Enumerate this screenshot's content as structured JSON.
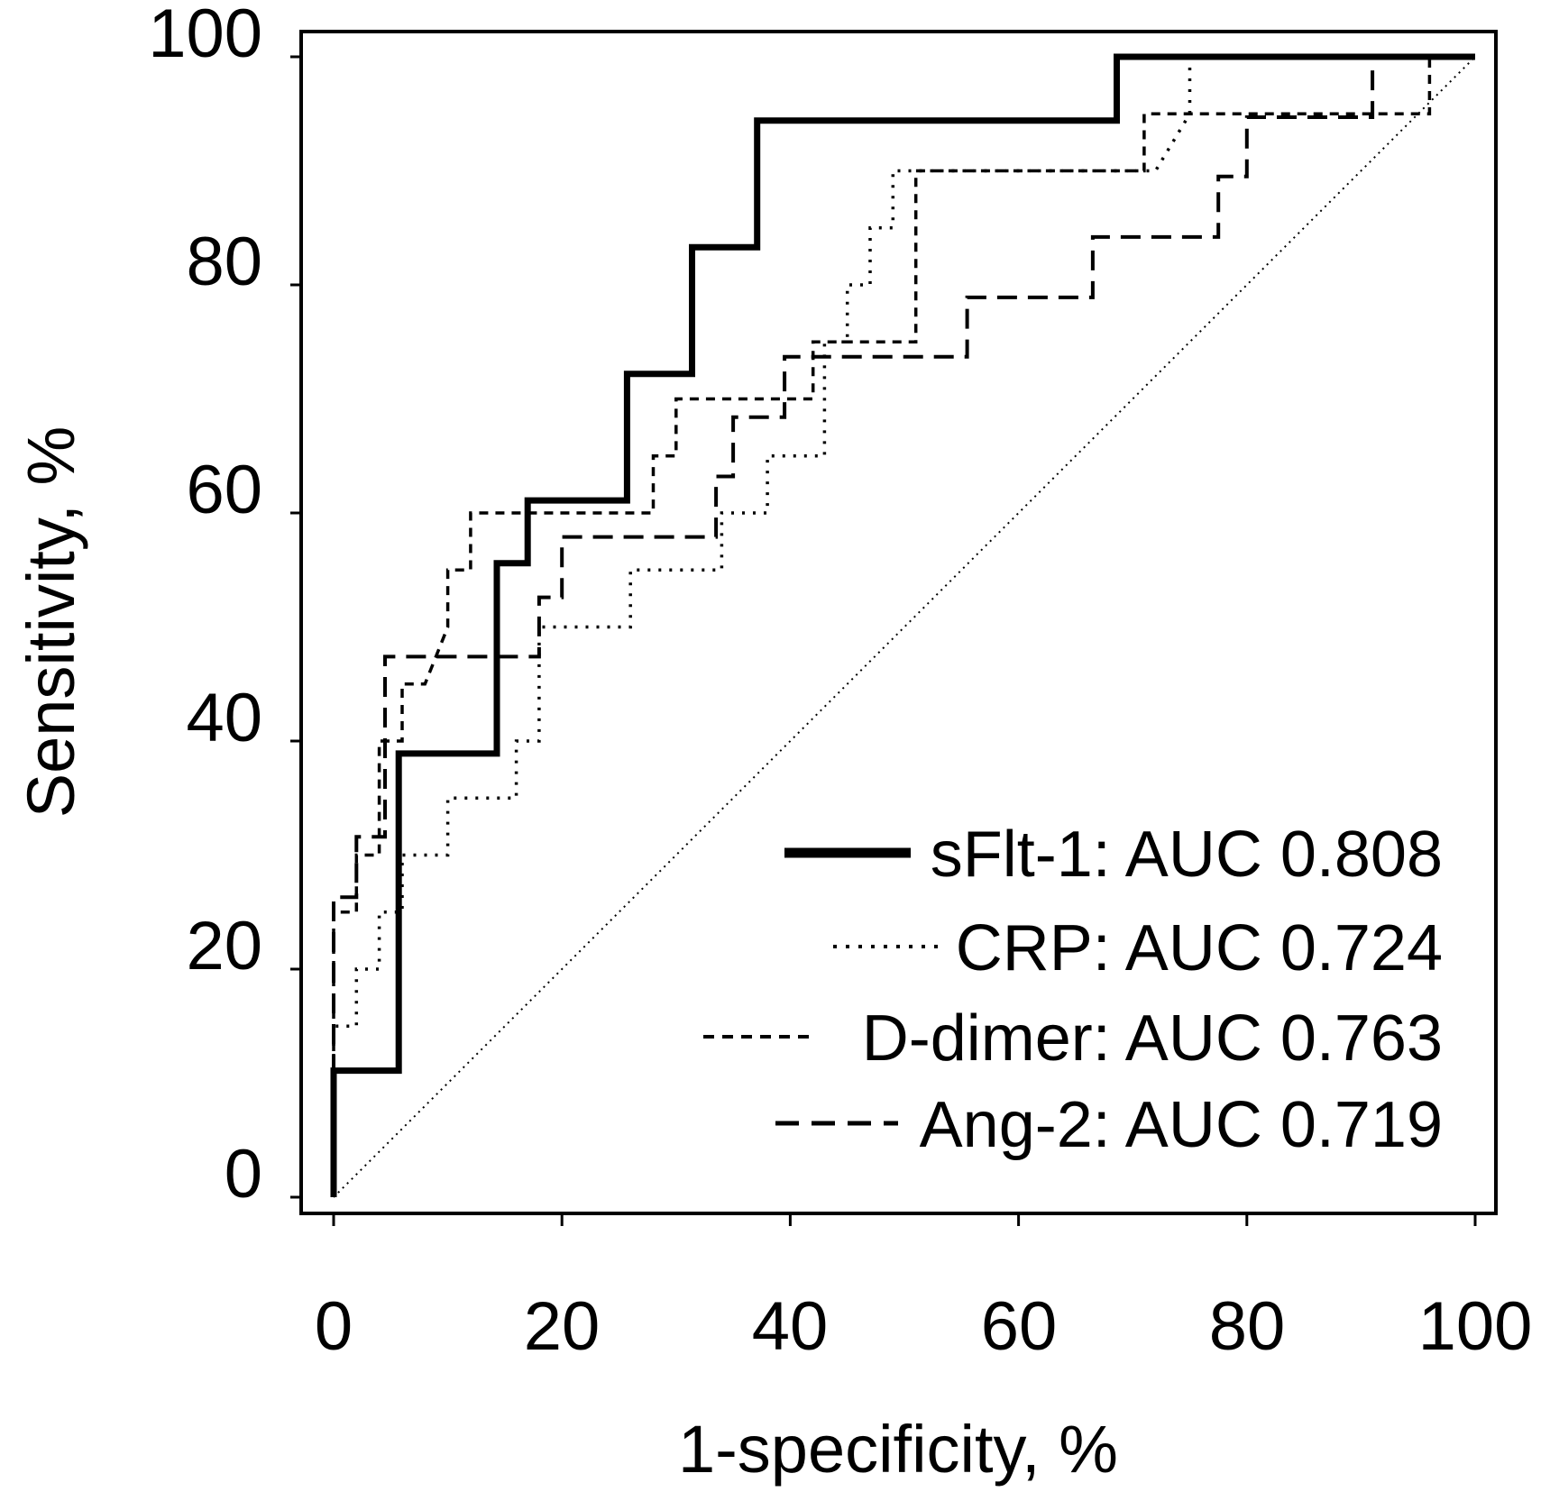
{
  "chart_data": {
    "type": "line",
    "title": "",
    "xlabel": "1-specificity, %",
    "ylabel": "Sensitivity, %",
    "xlim": [
      0,
      100
    ],
    "ylim": [
      0,
      100
    ],
    "xticks": [
      0,
      20,
      40,
      60,
      80,
      100
    ],
    "yticks": [
      0,
      20,
      40,
      60,
      80,
      100
    ],
    "grid": false,
    "legend_position": "bottom-right",
    "series": [
      {
        "name": "sFlt-1: AUC 0.808",
        "style": "solid",
        "x": [
          0,
          0,
          5.7,
          5.7,
          14.3,
          14.3,
          17,
          17,
          25.7,
          25.7,
          31.4,
          31.4,
          37.1,
          37.1,
          68.6,
          68.6,
          100
        ],
        "y": [
          0,
          11.1,
          11.1,
          38.9,
          38.9,
          55.6,
          55.6,
          61.1,
          61.1,
          72.2,
          72.2,
          83.3,
          83.3,
          94.4,
          94.4,
          100,
          100
        ]
      },
      {
        "name": "CRP: AUC 0.724",
        "style": "dotted",
        "x": [
          0,
          0,
          2,
          2,
          4,
          4,
          6,
          6,
          10,
          10,
          16,
          16,
          18,
          18,
          26,
          26,
          34,
          34,
          38,
          38,
          43,
          43,
          45,
          45,
          47,
          47,
          49,
          49,
          72,
          75,
          75,
          100
        ],
        "y": [
          0,
          15,
          15,
          20,
          20,
          25,
          25,
          30,
          30,
          35,
          35,
          40,
          40,
          50,
          50,
          55,
          55,
          60,
          60,
          65,
          65,
          75,
          75,
          80,
          80,
          85,
          85,
          90,
          90,
          95,
          100,
          100
        ]
      },
      {
        "name": "D-dimer: AUC 0.763",
        "style": "short-dash",
        "x": [
          0,
          0,
          2,
          2,
          4,
          4,
          6,
          6,
          8,
          10,
          10,
          12,
          12,
          28,
          28,
          30,
          30,
          42,
          42,
          44,
          44,
          51,
          51,
          71,
          71,
          96,
          96,
          100
        ],
        "y": [
          0,
          25,
          25,
          30,
          30,
          40,
          40,
          45,
          45,
          50,
          55,
          55,
          60,
          60,
          65,
          65,
          70,
          70,
          75,
          75,
          75,
          75,
          90,
          90,
          95,
          95,
          100,
          100
        ]
      },
      {
        "name": "Ang-2: AUC 0.719",
        "style": "long-dash",
        "x": [
          0,
          0,
          2,
          2,
          4.5,
          4.5,
          18,
          18,
          20,
          20,
          33.5,
          33.5,
          35,
          35,
          39.5,
          39.5,
          55.5,
          55.5,
          66.5,
          66.5,
          77.5,
          77.5,
          80,
          80,
          91,
          91,
          100
        ],
        "y": [
          0,
          26.3,
          26.3,
          31.6,
          31.6,
          47.4,
          47.4,
          52.6,
          52.6,
          57.9,
          57.9,
          63.2,
          63.2,
          68.4,
          68.4,
          73.7,
          73.7,
          78.9,
          78.9,
          84.2,
          84.2,
          89.5,
          89.5,
          94.7,
          94.7,
          100,
          100
        ]
      },
      {
        "name": "reference",
        "style": "thin-dotted",
        "x": [
          0,
          100
        ],
        "y": [
          0,
          100
        ]
      }
    ]
  }
}
